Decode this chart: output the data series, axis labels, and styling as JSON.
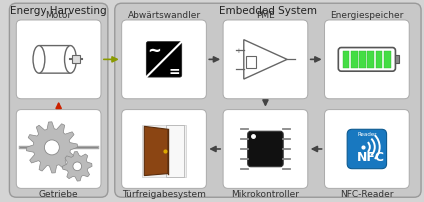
{
  "title_left": "Energy Harvesting",
  "title_center": "Embedded System",
  "label_motor": "Motor",
  "label_getriebe": "Getriebe",
  "label_abwarts": "Abwärtswandler",
  "label_pme": "PME",
  "label_energie": "Energiespeicher",
  "label_tur": "Türfreigabesystem",
  "label_mikro": "Mikrokontroller",
  "label_nfc": "NFC-Reader",
  "bg_outer": "#d4d4d4",
  "bg_box": "#c8c8c8",
  "white_box": "#ffffff",
  "arrow_green": "#8a9a00",
  "arrow_red": "#cc2200",
  "arrow_black": "#444444",
  "green_cell": "#44dd44",
  "nfc_blue": "#1878c0",
  "door_brown": "#8B4513",
  "font_title": 7.5,
  "font_label": 6.0,
  "font_label_above": 6.5
}
